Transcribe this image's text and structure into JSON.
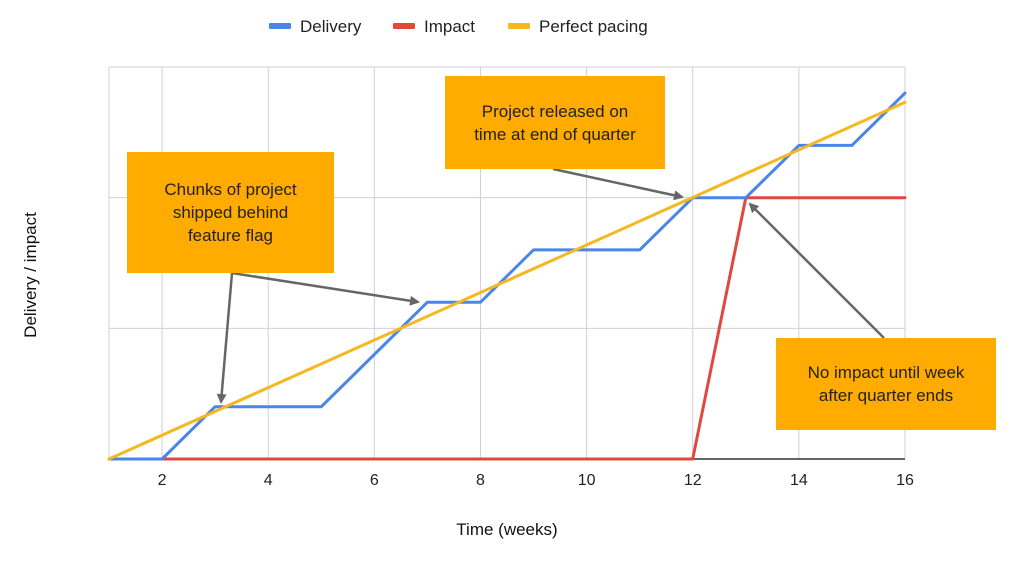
{
  "chart_data": {
    "type": "line",
    "xlabel": "Time (weeks)",
    "ylabel": "Delivery / impact",
    "xlim": [
      1,
      16
    ],
    "ylim": [
      0,
      3
    ],
    "xticks": [
      2,
      4,
      6,
      8,
      10,
      12,
      14,
      16
    ],
    "grid": true,
    "legend_position": "top-center",
    "series": [
      {
        "name": "Delivery",
        "color": "#4a86e8",
        "x": [
          1,
          2,
          3,
          4,
          5,
          6,
          7,
          8,
          9,
          10,
          11,
          12,
          13,
          14,
          15,
          16
        ],
        "y": [
          0,
          0,
          0.4,
          0.4,
          0.4,
          0.8,
          1.2,
          1.2,
          1.6,
          1.6,
          1.6,
          2.0,
          2.0,
          2.4,
          2.4,
          2.8
        ]
      },
      {
        "name": "Impact",
        "color": "#e0483e",
        "x": [
          1,
          12,
          13,
          16
        ],
        "y": [
          0,
          0,
          2.0,
          2.0
        ]
      },
      {
        "name": "Perfect pacing",
        "color": "#f6b820",
        "x": [
          1,
          16
        ],
        "y": [
          0,
          2.73
        ]
      }
    ],
    "annotations": [
      {
        "text": "Chunks of project\nshipped behind\nfeature flag"
      },
      {
        "text": "Project released on\ntime at end of quarter"
      },
      {
        "text": "No impact until week\nafter quarter ends"
      }
    ]
  }
}
